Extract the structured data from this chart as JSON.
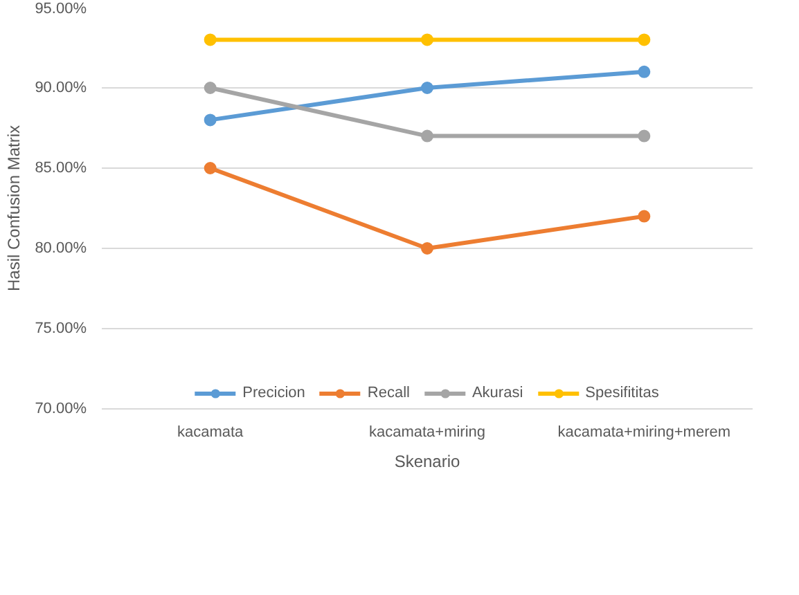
{
  "chart_data": {
    "type": "line",
    "xlabel": "Skenario",
    "ylabel": "Hasil Confusion Matrix",
    "categories": [
      "kacamata",
      "kacamata+miring",
      "kacamata+miring+merem"
    ],
    "series": [
      {
        "name": "Precicion",
        "color": "#5b9bd5",
        "values": [
          88,
          90,
          91
        ]
      },
      {
        "name": "Recall",
        "color": "#ed7d31",
        "values": [
          85,
          80,
          82
        ]
      },
      {
        "name": "Akurasi",
        "color": "#a5a5a5",
        "values": [
          90,
          87,
          87
        ]
      },
      {
        "name": "Spesifititas",
        "color": "#ffc000",
        "values": [
          93,
          93,
          93
        ]
      }
    ],
    "ylim": [
      70,
      95
    ],
    "yticks": [
      {
        "value": 70,
        "label": "70.00%"
      },
      {
        "value": 75,
        "label": "75.00%"
      },
      {
        "value": 80,
        "label": "80.00%"
      },
      {
        "value": 85,
        "label": "85.00%"
      },
      {
        "value": 90,
        "label": "90.00%"
      },
      {
        "value": 95,
        "label": "95.00%"
      }
    ],
    "grid": "y",
    "legend": "bottom",
    "marker": "circle",
    "line_style": "solid"
  }
}
